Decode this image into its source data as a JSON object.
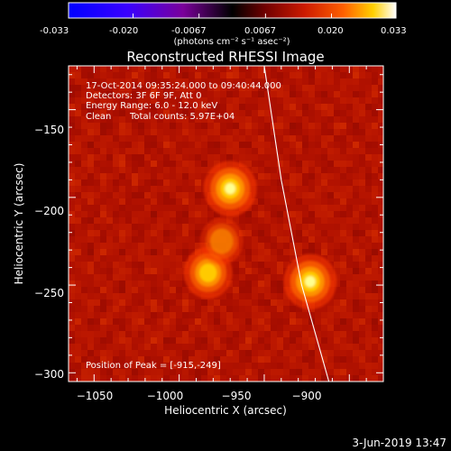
{
  "colorbar": {
    "ticks": [
      "-0.033",
      "-0.020",
      "-0.0067",
      "0.0067",
      "0.020",
      "0.033"
    ],
    "tick_values": [
      -0.033,
      -0.02,
      -0.0067,
      0.0067,
      0.02,
      0.033
    ],
    "range": [
      -0.033,
      0.033
    ],
    "units_label": "(photons cm⁻² s⁻¹ asec⁻²)"
  },
  "plot": {
    "title": "Reconstructed RHESSI Image",
    "xlabel": "Heliocentric X (arcsec)",
    "ylabel": "Heliocentric Y (arcsec)",
    "x_ticks": [
      "−1050",
      "−1000",
      "−950",
      "−900"
    ],
    "x_tick_values": [
      -1050,
      -1000,
      -950,
      -900
    ],
    "y_ticks": [
      "−150",
      "−200",
      "−250",
      "−300"
    ],
    "y_tick_values": [
      -150,
      -200,
      -250,
      -300
    ],
    "xlim": [
      -1065,
      -880
    ],
    "ylim": [
      -305,
      -125
    ]
  },
  "info": {
    "time_range": "17-Oct-2014 09:35:24.000 to 09:40:44.000",
    "detectors": "Detectors: 3F 6F 9F, Att 0",
    "energy": "Energy Range: 6.0 - 12.0 keV",
    "method": "Clean",
    "counts": "Total counts: 5.97E+04",
    "peak": "Position of Peak = [-915,-249]"
  },
  "sources": [
    {
      "x": -970,
      "y": -195,
      "amplitude": 1.0
    },
    {
      "x": -923,
      "y": -248,
      "amplitude": 1.0
    },
    {
      "x": -983,
      "y": -243,
      "amplitude": 0.75
    },
    {
      "x": -975,
      "y": -225,
      "amplitude": 0.45
    }
  ],
  "limb_curve": [
    [
      -950,
      -125
    ],
    [
      -940,
      -190
    ],
    [
      -928,
      -250
    ],
    [
      -912,
      -305
    ]
  ],
  "footer": {
    "date": "3-Jun-2019 13:47"
  },
  "colors": {
    "background": "#000000",
    "text": "#ffffff",
    "colormap": [
      "#0000ff",
      "#3a00ff",
      "#7a009a",
      "#000000",
      "#700000",
      "#cc1a00",
      "#ff6000",
      "#ffd000",
      "#ffffff"
    ]
  }
}
